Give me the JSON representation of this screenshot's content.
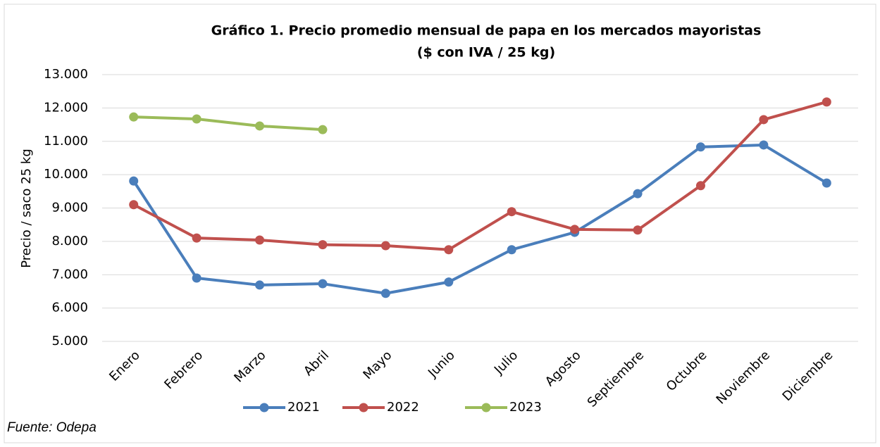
{
  "chart_data": {
    "type": "line",
    "title": "Gráfico 1. Precio promedio mensual de papa en los mercados mayoristas",
    "subtitle": "($ con IVA / 25 kg)",
    "y_label": "Precio / saco 25 kg",
    "source": "Fuente: Odepa",
    "categories": [
      "Enero",
      "Febrero",
      "Marzo",
      "Abril",
      "Mayo",
      "Junio",
      "Julio",
      "Agosto",
      "Septiembre",
      "Octubre",
      "Noviembre",
      "Diciembre"
    ],
    "series": [
      {
        "name": "2021",
        "color": "#4a7ebb",
        "values": [
          9810,
          6900,
          6690,
          6730,
          6440,
          6780,
          7750,
          8270,
          9430,
          10830,
          10890,
          9750
        ]
      },
      {
        "name": "2022",
        "color": "#c0504d",
        "values": [
          9100,
          8100,
          8040,
          7900,
          7870,
          7750,
          8890,
          8360,
          8340,
          9670,
          11650,
          12180
        ]
      },
      {
        "name": "2023",
        "color": "#9bbb59",
        "values": [
          11730,
          11670,
          11460,
          11350,
          null,
          null,
          null,
          null,
          null,
          null,
          null,
          null
        ]
      }
    ],
    "ylim": [
      5000,
      13000
    ],
    "yticks": [
      {
        "value": 5000,
        "label": "5.000"
      },
      {
        "value": 6000,
        "label": "6.000"
      },
      {
        "value": 7000,
        "label": "7.000"
      },
      {
        "value": 8000,
        "label": "8.000"
      },
      {
        "value": 9000,
        "label": "9.000"
      },
      {
        "value": 10000,
        "label": "10.000"
      },
      {
        "value": 11000,
        "label": "11.000"
      },
      {
        "value": 12000,
        "label": "12.000"
      },
      {
        "value": 13000,
        "label": "13.000"
      }
    ],
    "grid": true,
    "legend": "bottom"
  }
}
